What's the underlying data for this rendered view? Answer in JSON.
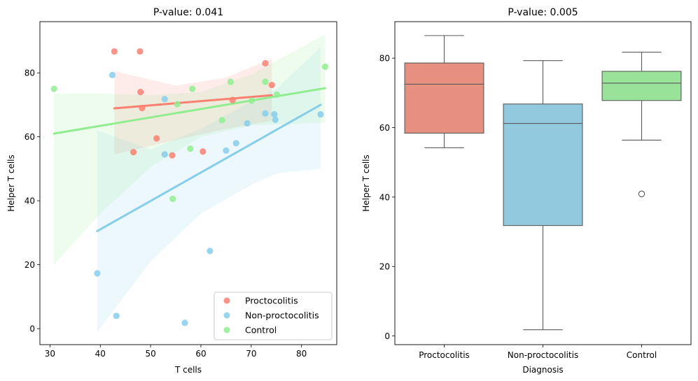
{
  "chart_data": [
    {
      "type": "scatter",
      "title": "P-value: 0.041",
      "xlabel": "T cells",
      "ylabel": "Helper T cells",
      "xlim": [
        28,
        87
      ],
      "ylim": [
        -5,
        96
      ],
      "xticks": [
        30,
        40,
        50,
        60,
        70,
        80
      ],
      "yticks": [
        0,
        20,
        40,
        60,
        80
      ],
      "legend_placement": "lower-right",
      "series": [
        {
          "name": "Proctocolitis",
          "color": "#fa8072",
          "points": [
            [
              42.8,
              86.7
            ],
            [
              47.9,
              86.7
            ],
            [
              48.0,
              74.0
            ],
            [
              48.3,
              69.0
            ],
            [
              46.6,
              55.2
            ],
            [
              51.2,
              59.5
            ],
            [
              54.3,
              54.2
            ],
            [
              60.4,
              55.4
            ],
            [
              66.3,
              71.5
            ],
            [
              72.8,
              83.0
            ],
            [
              74.1,
              76.2
            ]
          ],
          "fit": {
            "x0": 42.8,
            "y0": 68.9,
            "x1": 74.1,
            "y1": 73.0
          },
          "ci_lower": [
            [
              42.8,
              54.5
            ],
            [
              55,
              59.0
            ],
            [
              65,
              62.5
            ],
            [
              74.1,
              65.0
            ]
          ],
          "ci_upper": [
            [
              42.8,
              80.5
            ],
            [
              55,
              76.0
            ],
            [
              65,
              78.5
            ],
            [
              74.1,
              84.5
            ]
          ]
        },
        {
          "name": "Non-proctocolitis",
          "color": "#87ceeb",
          "points": [
            [
              42.4,
              79.3
            ],
            [
              52.8,
              71.8
            ],
            [
              52.8,
              54.5
            ],
            [
              65.0,
              55.7
            ],
            [
              67.0,
              58.0
            ],
            [
              69.2,
              64.2
            ],
            [
              72.8,
              67.3
            ],
            [
              74.6,
              67.0
            ],
            [
              74.8,
              65.3
            ],
            [
              83.8,
              67.0
            ],
            [
              39.4,
              17.3
            ],
            [
              43.2,
              4.0
            ],
            [
              56.8,
              1.8
            ],
            [
              61.8,
              24.3
            ]
          ],
          "fit": {
            "x0": 39.4,
            "y0": 30.5,
            "x1": 83.8,
            "y1": 70.0
          },
          "ci_lower": [
            [
              39.4,
              -1.0
            ],
            [
              50,
              21.0
            ],
            [
              60,
              36.0
            ],
            [
              70,
              45.0
            ],
            [
              75,
              48.5
            ],
            [
              83.8,
              50.0
            ]
          ],
          "ci_upper": [
            [
              39.4,
              62.0
            ],
            [
              50,
              56.0
            ],
            [
              60,
              62.5
            ],
            [
              70,
              71.0
            ],
            [
              75,
              75.0
            ],
            [
              83.8,
              88.0
            ]
          ]
        },
        {
          "name": "Control",
          "color": "#90ee90",
          "points": [
            [
              30.8,
              75.0
            ],
            [
              55.3,
              70.2
            ],
            [
              57.9,
              56.3
            ],
            [
              54.4,
              40.6
            ],
            [
              58.3,
              75.0
            ],
            [
              64.2,
              65.2
            ],
            [
              65.9,
              77.2
            ],
            [
              70.1,
              71.3
            ],
            [
              72.8,
              77.2
            ],
            [
              75.1,
              73.2
            ],
            [
              84.7,
              81.9
            ]
          ],
          "fit": {
            "x0": 30.8,
            "y0": 61.0,
            "x1": 84.7,
            "y1": 75.2
          },
          "ci_lower": [
            [
              30.8,
              20.0
            ],
            [
              40,
              36.0
            ],
            [
              50,
              50.5
            ],
            [
              60,
              60.0
            ],
            [
              70,
              63.5
            ],
            [
              84.7,
              64.5
            ]
          ],
          "ci_upper": [
            [
              30.8,
              73.5
            ],
            [
              40,
              73.5
            ],
            [
              50,
              73.0
            ],
            [
              60,
              74.0
            ],
            [
              70,
              79.5
            ],
            [
              84.7,
              92.0
            ]
          ]
        }
      ]
    },
    {
      "type": "box",
      "title": "P-value: 0.005",
      "xlabel": "Diagnosis",
      "ylabel": "Helper T cells",
      "ylim": [
        -2.5,
        90.5
      ],
      "yticks": [
        0,
        20,
        40,
        60,
        80
      ],
      "categories": [
        "Proctocolitis",
        "Non-proctocolitis",
        "Control"
      ],
      "boxes": [
        {
          "category": "Proctocolitis",
          "color": "#e8907f",
          "whisker_low": 54.2,
          "q1": 58.4,
          "median": 72.5,
          "q3": 78.6,
          "whisker_high": 86.5,
          "outliers": []
        },
        {
          "category": "Non-proctocolitis",
          "color": "#93c9df",
          "whisker_low": 1.8,
          "q1": 31.8,
          "median": 61.2,
          "q3": 66.8,
          "whisker_high": 79.3,
          "outliers": []
        },
        {
          "category": "Control",
          "color": "#99e299",
          "whisker_low": 56.4,
          "q1": 67.8,
          "median": 72.8,
          "q3": 76.2,
          "whisker_high": 81.7,
          "outliers": [
            40.9
          ]
        }
      ]
    }
  ]
}
